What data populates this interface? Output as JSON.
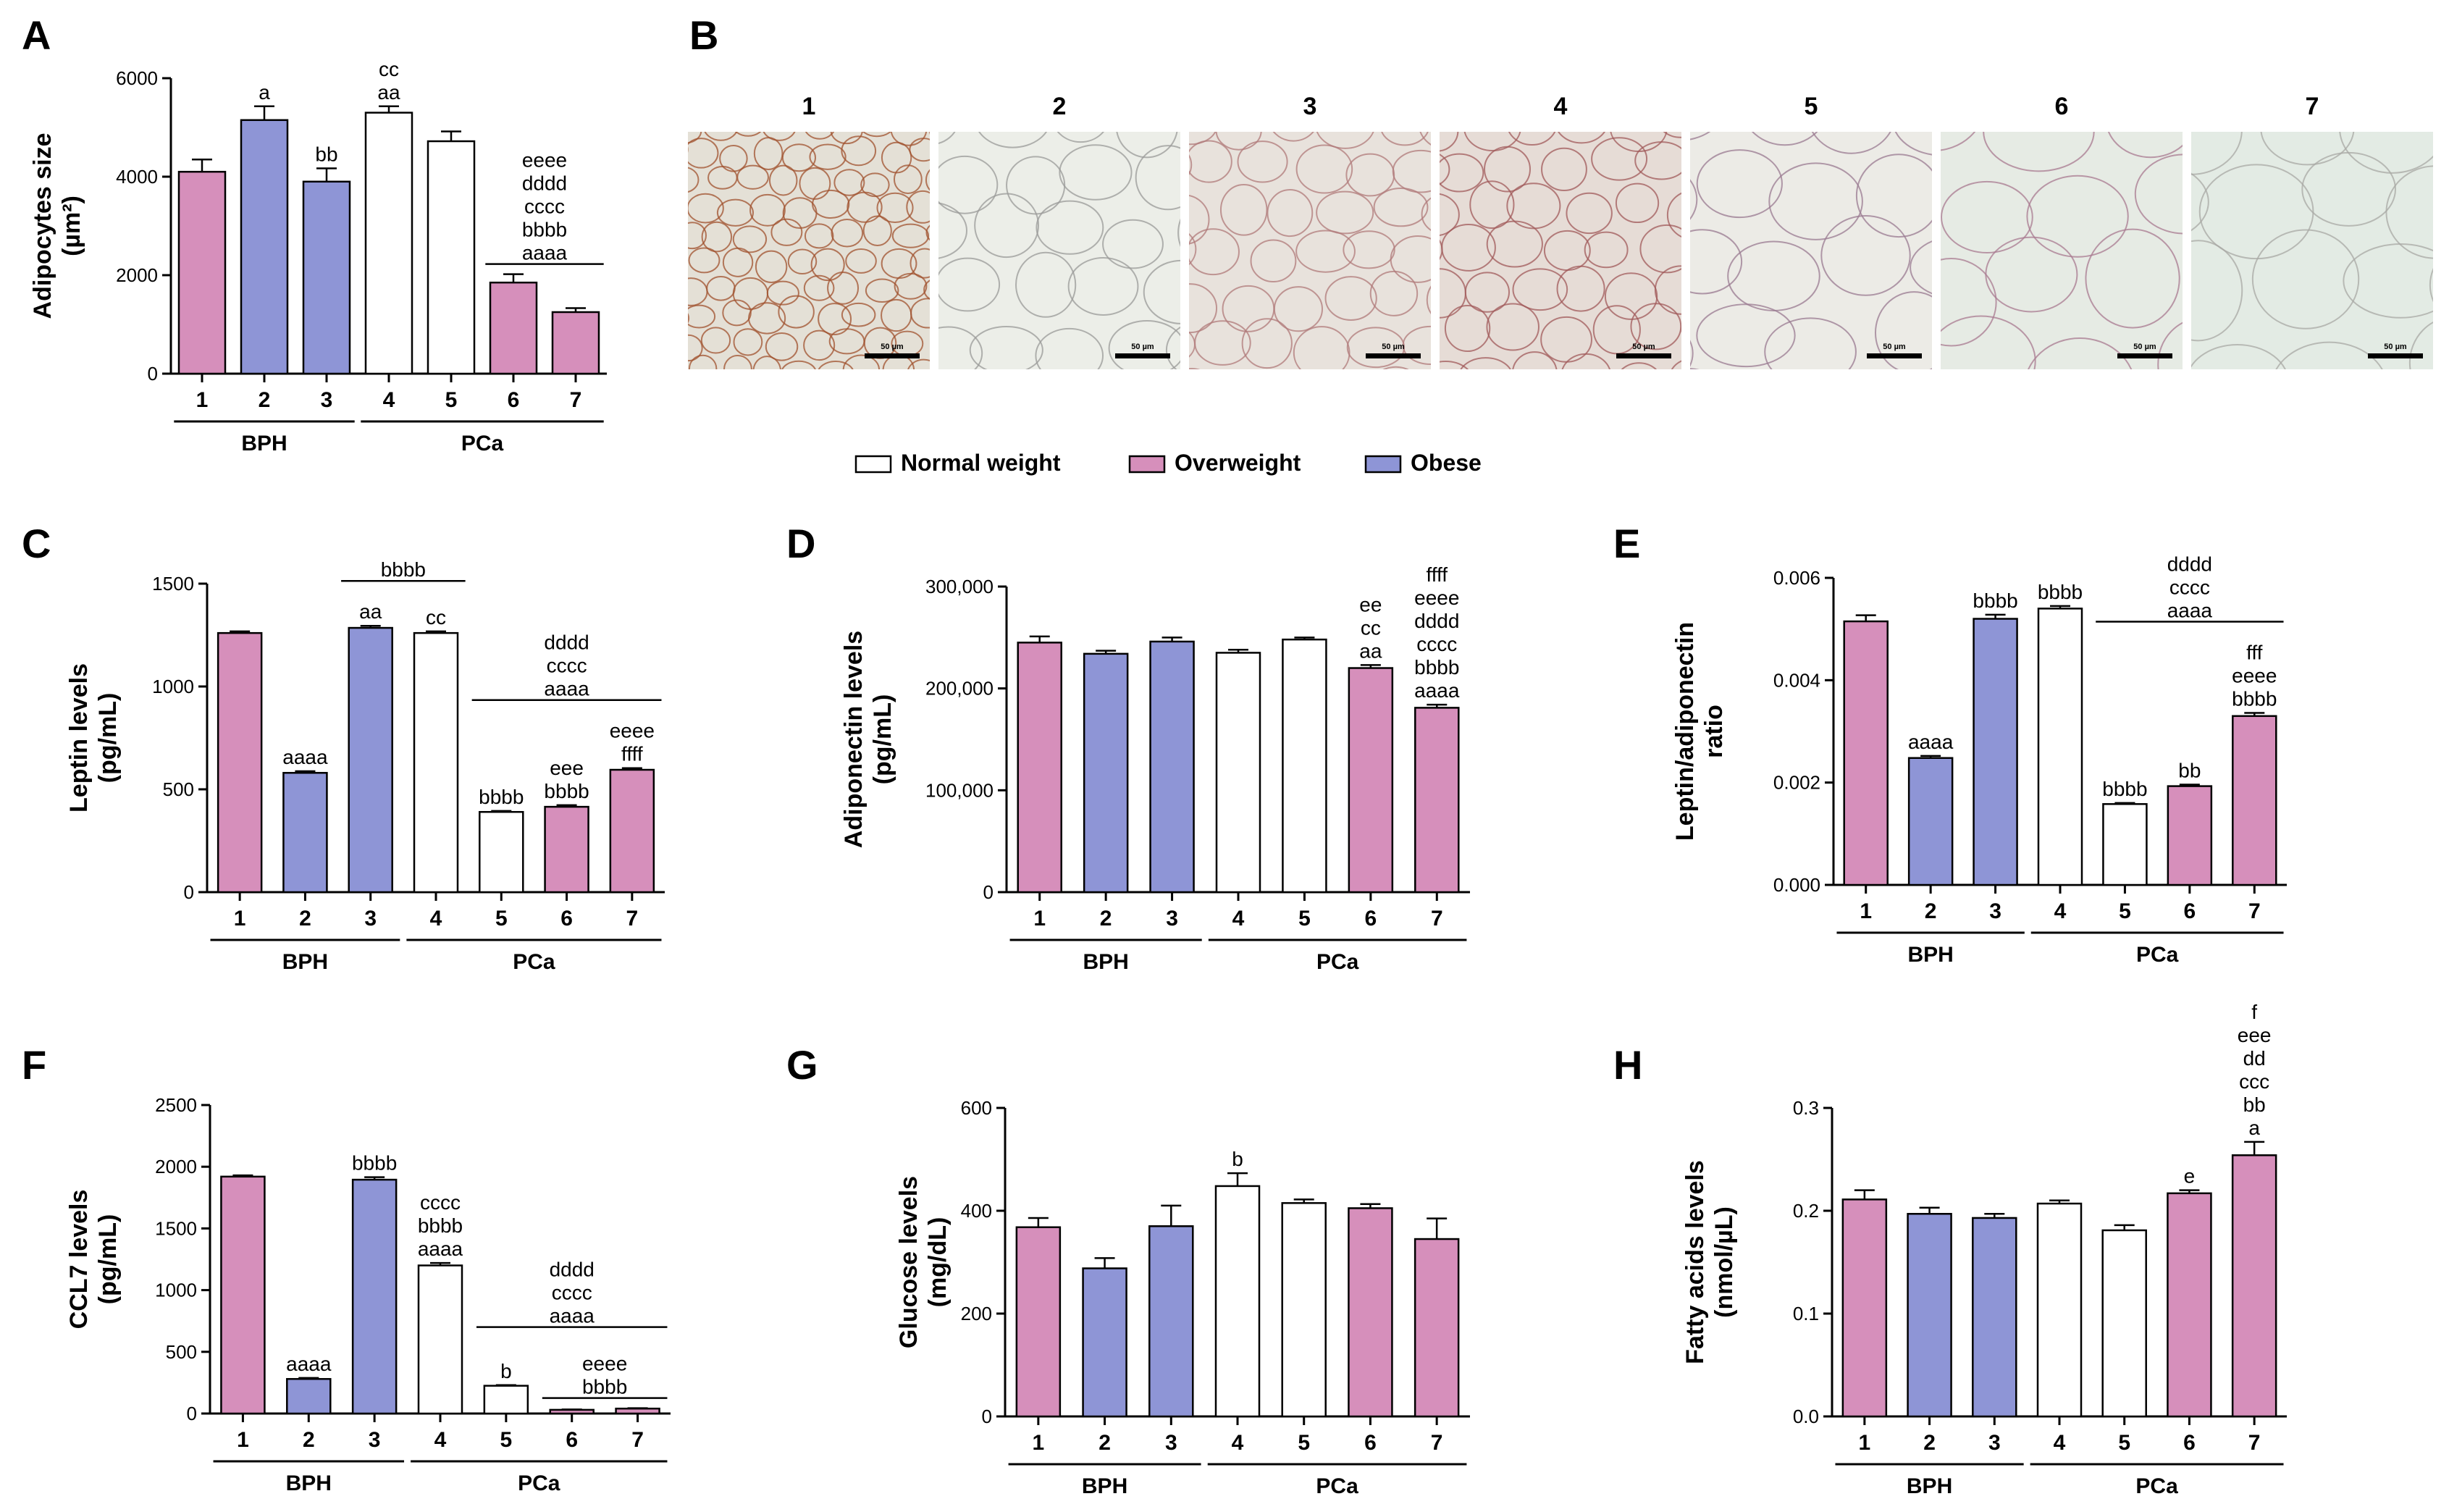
{
  "colors": {
    "normal": "#ffffff",
    "overweight": "#d68fbb",
    "obese": "#8e95d6",
    "edge": "#000000"
  },
  "legend": [
    {
      "label": "Normal weight",
      "color": "#ffffff"
    },
    {
      "label": "Overweight",
      "color": "#d68fbb"
    },
    {
      "label": "Obese",
      "color": "#8e95d6"
    }
  ],
  "histology": {
    "letter": "B",
    "labels": [
      "1",
      "2",
      "3",
      "4",
      "5",
      "6",
      "7"
    ],
    "scalebar_label": "50 µm"
  },
  "chart_data": [
    {
      "letter": "A",
      "type": "bar",
      "ylabel_lines": [
        "Adipocytes size",
        "(µm²)"
      ],
      "categories": [
        "1",
        "2",
        "3",
        "4",
        "5",
        "6",
        "7"
      ],
      "groups": [
        {
          "label": "BPH",
          "from": 1,
          "to": 3
        },
        {
          "label": "PCa",
          "from": 4,
          "to": 7
        }
      ],
      "fills": [
        "overweight",
        "obese",
        "obese",
        "normal",
        "normal",
        "overweight",
        "overweight"
      ],
      "values": [
        4100,
        5150,
        3900,
        5300,
        4720,
        1850,
        1250
      ],
      "errors": [
        250,
        280,
        270,
        130,
        200,
        170,
        80
      ],
      "ylim": [
        0,
        6000
      ],
      "yticks": [
        "0",
        "2000",
        "4000",
        "6000"
      ],
      "annotations": [
        {
          "bar": 2,
          "lines": [
            "a"
          ]
        },
        {
          "bar": 3,
          "lines": [
            "bb"
          ]
        },
        {
          "bar": 4,
          "lines": [
            "cc",
            "aa"
          ]
        },
        {
          "span": [
            6,
            7
          ],
          "lines": [
            "eeee",
            "dddd",
            "cccc",
            "bbbb",
            "aaaa"
          ]
        }
      ]
    },
    {
      "letter": "C",
      "type": "bar",
      "ylabel_lines": [
        "Leptin levels",
        "(pg/mL)"
      ],
      "categories": [
        "1",
        "2",
        "3",
        "4",
        "5",
        "6",
        "7"
      ],
      "groups": [
        {
          "label": "BPH",
          "from": 1,
          "to": 3
        },
        {
          "label": "PCa",
          "from": 4,
          "to": 7
        }
      ],
      "fills": [
        "overweight",
        "obese",
        "obese",
        "normal",
        "normal",
        "overweight",
        "overweight"
      ],
      "values": [
        1260,
        580,
        1285,
        1260,
        390,
        415,
        595
      ],
      "errors": [
        8,
        8,
        10,
        8,
        5,
        8,
        8
      ],
      "ylim": [
        0,
        1500
      ],
      "yticks": [
        "0",
        "500",
        "1000",
        "1500"
      ],
      "annotations": [
        {
          "bar": 2,
          "lines": [
            "aaaa"
          ]
        },
        {
          "bar": 3,
          "lines": [
            "aa"
          ]
        },
        {
          "bar": 4,
          "lines": [
            "cc"
          ]
        },
        {
          "span": [
            3,
            4
          ],
          "lines": [
            "bbbb"
          ]
        },
        {
          "bar": 5,
          "lines": [
            "bbbb"
          ]
        },
        {
          "bar": 6,
          "lines": [
            "eee",
            "bbbb"
          ]
        },
        {
          "bar": 7,
          "lines": [
            "eeee",
            "ffff"
          ]
        },
        {
          "span": [
            5,
            7
          ],
          "lines": [
            "dddd",
            "cccc",
            "aaaa"
          ]
        }
      ]
    },
    {
      "letter": "D",
      "type": "bar",
      "ylabel_lines": [
        "Adiponectin levels",
        "(pg/mL)"
      ],
      "categories": [
        "1",
        "2",
        "3",
        "4",
        "5",
        "6",
        "7"
      ],
      "groups": [
        {
          "label": "BPH",
          "from": 1,
          "to": 3
        },
        {
          "label": "PCa",
          "from": 4,
          "to": 7
        }
      ],
      "fills": [
        "overweight",
        "obese",
        "obese",
        "normal",
        "normal",
        "overweight",
        "overweight"
      ],
      "values": [
        245000,
        234000,
        246000,
        235000,
        248000,
        220000,
        181000
      ],
      "errors": [
        6000,
        3000,
        4000,
        3000,
        2000,
        3000,
        3000
      ],
      "ylim": [
        0,
        300000
      ],
      "yticks": [
        "0",
        "100,000",
        "200,000",
        "300,000"
      ],
      "annotations": [
        {
          "bar": 6,
          "lines": [
            "ee",
            "cc",
            "aa"
          ]
        },
        {
          "bar": 7,
          "lines": [
            "ffff",
            "eeee",
            "dddd",
            "cccc",
            "bbbb",
            "aaaa"
          ]
        }
      ]
    },
    {
      "letter": "E",
      "type": "bar",
      "ylabel_lines": [
        "Leptin/adiponectin",
        "ratio"
      ],
      "categories": [
        "1",
        "2",
        "3",
        "4",
        "5",
        "6",
        "7"
      ],
      "groups": [
        {
          "label": "BPH",
          "from": 1,
          "to": 3
        },
        {
          "label": "PCa",
          "from": 4,
          "to": 7
        }
      ],
      "fills": [
        "overweight",
        "obese",
        "obese",
        "normal",
        "normal",
        "overweight",
        "overweight"
      ],
      "values": [
        0.00515,
        0.00248,
        0.0052,
        0.0054,
        0.00158,
        0.00193,
        0.0033
      ],
      "errors": [
        0.00012,
        4e-05,
        8e-05,
        5e-05,
        2e-05,
        3e-05,
        6e-05
      ],
      "ylim": [
        0,
        0.006
      ],
      "yticks": [
        "0.000",
        "0.002",
        "0.004",
        "0.006"
      ],
      "annotations": [
        {
          "bar": 2,
          "lines": [
            "aaaa"
          ]
        },
        {
          "bar": 3,
          "lines": [
            "bbbb"
          ]
        },
        {
          "bar": 4,
          "lines": [
            "bbbb"
          ]
        },
        {
          "span": [
            5,
            7
          ],
          "lines": [
            "dddd",
            "cccc",
            "aaaa"
          ]
        },
        {
          "bar": 5,
          "lines": [
            "bbbb"
          ]
        },
        {
          "bar": 6,
          "lines": [
            "bb"
          ]
        },
        {
          "bar": 7,
          "lines": [
            "fff",
            "eeee",
            "bbbb"
          ]
        }
      ]
    },
    {
      "letter": "F",
      "type": "bar",
      "ylabel_lines": [
        "CCL7 levels",
        "(pg/mL)"
      ],
      "categories": [
        "1",
        "2",
        "3",
        "4",
        "5",
        "6",
        "7"
      ],
      "groups": [
        {
          "label": "BPH",
          "from": 1,
          "to": 3
        },
        {
          "label": "PCa",
          "from": 4,
          "to": 7
        }
      ],
      "fills": [
        "overweight",
        "obese",
        "obese",
        "normal",
        "normal",
        "overweight",
        "overweight"
      ],
      "values": [
        1920,
        280,
        1895,
        1200,
        225,
        30,
        40
      ],
      "errors": [
        10,
        8,
        20,
        20,
        5,
        3,
        3
      ],
      "ylim": [
        0,
        2500
      ],
      "yticks": [
        "0",
        "500",
        "1000",
        "1500",
        "2000",
        "2500"
      ],
      "annotations": [
        {
          "bar": 2,
          "lines": [
            "aaaa"
          ]
        },
        {
          "bar": 3,
          "lines": [
            "bbbb"
          ]
        },
        {
          "bar": 4,
          "lines": [
            "cccc",
            "bbbb",
            "aaaa"
          ]
        },
        {
          "bar": 5,
          "lines": [
            "b"
          ]
        },
        {
          "span": [
            5,
            7
          ],
          "lines": [
            "dddd",
            "cccc",
            "aaaa"
          ]
        },
        {
          "span": [
            6,
            7
          ],
          "lines": [
            "eeee",
            "bbbb"
          ]
        }
      ]
    },
    {
      "letter": "G",
      "type": "bar",
      "ylabel_lines": [
        "Glucose levels",
        "(mg/dL)"
      ],
      "categories": [
        "1",
        "2",
        "3",
        "4",
        "5",
        "6",
        "7"
      ],
      "groups": [
        {
          "label": "BPH",
          "from": 1,
          "to": 3
        },
        {
          "label": "PCa",
          "from": 4,
          "to": 7
        }
      ],
      "fills": [
        "overweight",
        "obese",
        "obese",
        "normal",
        "normal",
        "overweight",
        "overweight"
      ],
      "values": [
        368,
        288,
        370,
        448,
        415,
        405,
        345
      ],
      "errors": [
        18,
        20,
        40,
        25,
        7,
        8,
        40
      ],
      "ylim": [
        0,
        600
      ],
      "yticks": [
        "0",
        "200",
        "400",
        "600"
      ],
      "annotations": [
        {
          "bar": 4,
          "lines": [
            "b"
          ]
        }
      ]
    },
    {
      "letter": "H",
      "type": "bar",
      "ylabel_lines": [
        "Fatty acids levels",
        "(nmol/µL)"
      ],
      "categories": [
        "1",
        "2",
        "3",
        "4",
        "5",
        "6",
        "7"
      ],
      "groups": [
        {
          "label": "BPH",
          "from": 1,
          "to": 3
        },
        {
          "label": "PCa",
          "from": 4,
          "to": 7
        }
      ],
      "fills": [
        "overweight",
        "obese",
        "obese",
        "normal",
        "normal",
        "overweight",
        "overweight"
      ],
      "values": [
        0.211,
        0.197,
        0.193,
        0.207,
        0.181,
        0.217,
        0.254
      ],
      "errors": [
        0.009,
        0.006,
        0.004,
        0.003,
        0.005,
        0.003,
        0.013
      ],
      "ylim": [
        0,
        0.3
      ],
      "yticks": [
        "0.0",
        "0.1",
        "0.2",
        "0.3"
      ],
      "annotations": [
        {
          "bar": 6,
          "lines": [
            "e"
          ]
        },
        {
          "bar": 7,
          "lines": [
            "f",
            "eee",
            "dd",
            "ccc",
            "bb",
            "a"
          ]
        }
      ]
    }
  ]
}
